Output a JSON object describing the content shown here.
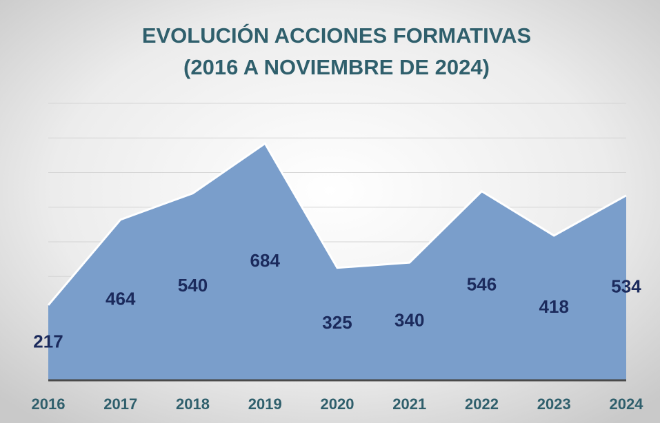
{
  "chart_data": {
    "type": "area",
    "title": [
      "EVOLUCIÓN ACCIONES FORMATIVAS",
      "(2016 A NOVIEMBRE DE 2024)"
    ],
    "categories": [
      "2016",
      "2017",
      "2018",
      "2019",
      "2020",
      "2021",
      "2022",
      "2023",
      "2024"
    ],
    "values": [
      217,
      464,
      540,
      684,
      325,
      340,
      546,
      418,
      534
    ],
    "color": "#7a9ecb",
    "ylim": [
      0,
      800
    ],
    "yticks": [
      0,
      100,
      200,
      300,
      400,
      500,
      600,
      700,
      800
    ],
    "grid": true
  }
}
